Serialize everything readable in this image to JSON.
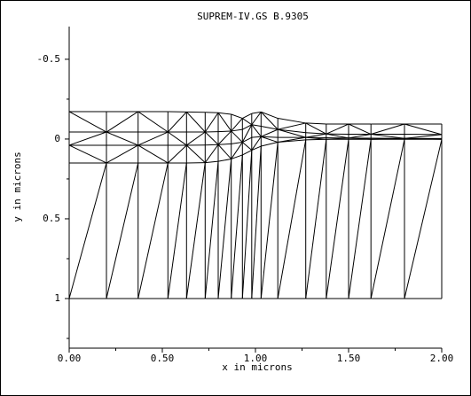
{
  "chart_data": {
    "type": "mesh",
    "title": "SUPREM-IV.GS B.9305",
    "x_label": "x in microns",
    "y_label": "y in microns",
    "xlim": [
      0,
      2
    ],
    "ylim": [
      -0.705,
      1.311
    ],
    "y_inverted": true,
    "xticks": [
      {
        "value": 0,
        "label": "0.00"
      },
      {
        "value": 0.5,
        "label": "0.50"
      },
      {
        "value": 1,
        "label": "1.00"
      },
      {
        "value": 1.5,
        "label": "1.50"
      },
      {
        "value": 2,
        "label": "2.00"
      }
    ],
    "xminorticks": [
      0.25,
      0.75,
      1.25,
      1.75
    ],
    "yticks": [
      -0.5,
      0,
      0.5,
      1
    ],
    "yminorticks": [
      -0.25,
      0.25,
      0.75,
      1.25
    ],
    "bottom_y": 1,
    "columns": [
      {
        "x": 0,
        "y": [
          -0.172,
          -0.044,
          0.039,
          0.15
        ]
      },
      {
        "x": 0.2,
        "y": [
          -0.172,
          -0.044,
          0.039,
          0.15
        ]
      },
      {
        "x": 0.37,
        "y": [
          -0.172,
          -0.044,
          0.039,
          0.15
        ]
      },
      {
        "x": 0.53,
        "y": [
          -0.172,
          -0.044,
          0.039,
          0.15
        ]
      },
      {
        "x": 0.63,
        "y": [
          -0.17,
          -0.044,
          0.039,
          0.15
        ]
      },
      {
        "x": 0.73,
        "y": [
          -0.168,
          -0.044,
          0.038,
          0.148
        ]
      },
      {
        "x": 0.8,
        "y": [
          -0.165,
          -0.046,
          0.035,
          0.14
        ]
      },
      {
        "x": 0.87,
        "y": [
          -0.155,
          -0.05,
          0.03,
          0.125
        ]
      },
      {
        "x": 0.93,
        "y": [
          -0.13,
          -0.06,
          0.02,
          0.1
        ]
      },
      {
        "x": 0.98,
        "y": [
          -0.16,
          -0.09,
          -0.01,
          0.07
        ]
      },
      {
        "x": 1.03,
        "y": [
          -0.17,
          -0.08,
          -0.015,
          0.045
        ]
      },
      {
        "x": 1.12,
        "y": [
          -0.13,
          -0.06,
          -0.01,
          0.02
        ]
      },
      {
        "x": 1.27,
        "y": [
          -0.1,
          -0.04,
          -0.01,
          0.005
        ]
      },
      {
        "x": 1.38,
        "y": [
          -0.094,
          -0.032,
          -0.008,
          0.002
        ]
      },
      {
        "x": 1.5,
        "y": [
          -0.094,
          -0.03,
          -0.006,
          0.002
        ]
      },
      {
        "x": 1.62,
        "y": [
          -0.094,
          -0.03,
          -0.005,
          0.002
        ]
      },
      {
        "x": 1.8,
        "y": [
          -0.094,
          -0.03,
          -0.004,
          0.002
        ]
      },
      {
        "x": 2,
        "y": [
          -0.094,
          -0.028,
          -0.003,
          0.002
        ]
      }
    ]
  }
}
